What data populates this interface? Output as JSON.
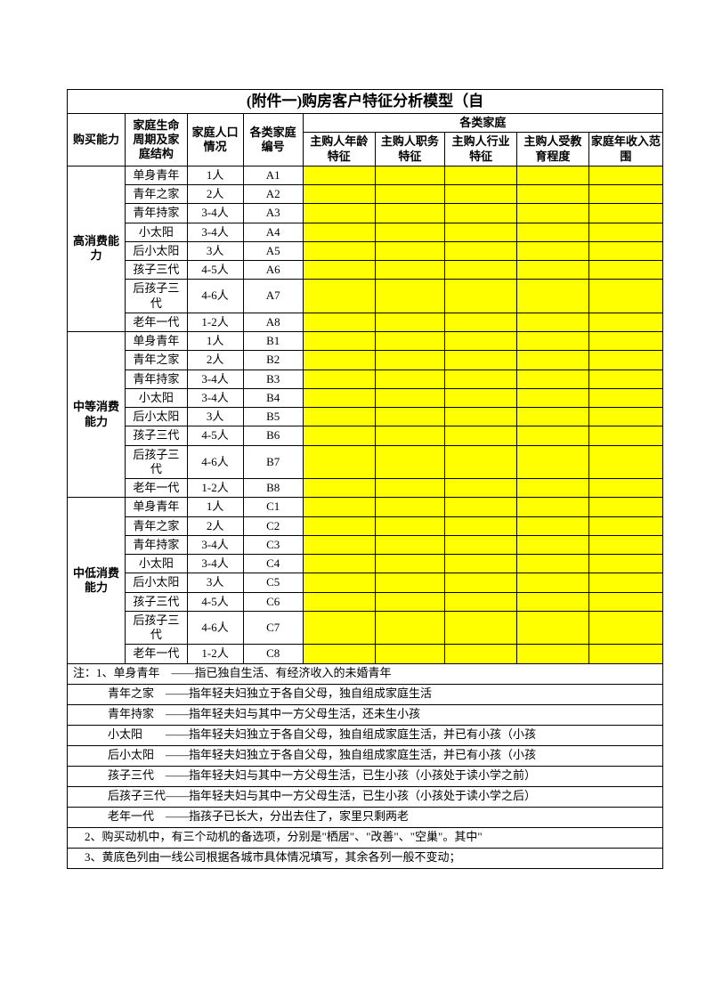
{
  "title": "(附件一)购房客户特征分析模型（自",
  "colors": {
    "highlight": "#ffff00",
    "border": "#000000",
    "bg": "#ffffff"
  },
  "font": {
    "family": "SimSun",
    "size_pt": 10,
    "title_size_pt": 13
  },
  "headers": {
    "col1": "购买能力",
    "col2": "家庭生命周期及家庭结构",
    "col3": "家庭人口情况",
    "col4": "各类家庭编号",
    "merged_top": "各类家庭",
    "c5": "主购人年龄特征",
    "c6": "主购人职务特征",
    "c7": "主购人行业特征",
    "c8": "主购人受教育程度",
    "c9": "家庭年收入范围"
  },
  "groups": [
    {
      "name": "高消费能力",
      "code_prefix": "A",
      "rows": [
        {
          "stage": "单身青年",
          "pop": "1人",
          "code": "A1"
        },
        {
          "stage": "青年之家",
          "pop": "2人",
          "code": "A2"
        },
        {
          "stage": "青年持家",
          "pop": "3-4人",
          "code": "A3"
        },
        {
          "stage": "小太阳",
          "pop": "3-4人",
          "code": "A4"
        },
        {
          "stage": "后小太阳",
          "pop": "3人",
          "code": "A5"
        },
        {
          "stage": "孩子三代",
          "pop": "4-5人",
          "code": "A6"
        },
        {
          "stage": "后孩子三代",
          "pop": "4-6人",
          "code": "A7"
        },
        {
          "stage": "老年一代",
          "pop": "1-2人",
          "code": "A8"
        }
      ]
    },
    {
      "name": "中等消费能力",
      "code_prefix": "B",
      "rows": [
        {
          "stage": "单身青年",
          "pop": "1人",
          "code": "B1"
        },
        {
          "stage": "青年之家",
          "pop": "2人",
          "code": "B2"
        },
        {
          "stage": "青年持家",
          "pop": "3-4人",
          "code": "B3"
        },
        {
          "stage": "小太阳",
          "pop": "3-4人",
          "code": "B4"
        },
        {
          "stage": "后小太阳",
          "pop": "3人",
          "code": "B5"
        },
        {
          "stage": "孩子三代",
          "pop": "4-5人",
          "code": "B6"
        },
        {
          "stage": "后孩子三代",
          "pop": "4-6人",
          "code": "B7"
        },
        {
          "stage": "老年一代",
          "pop": "1-2人",
          "code": "B8"
        }
      ]
    },
    {
      "name": "中低消费能力",
      "code_prefix": "C",
      "rows": [
        {
          "stage": "单身青年",
          "pop": "1人",
          "code": "C1"
        },
        {
          "stage": "青年之家",
          "pop": "2人",
          "code": "C2"
        },
        {
          "stage": "青年持家",
          "pop": "3-4人",
          "code": "C3"
        },
        {
          "stage": "小太阳",
          "pop": "3-4人",
          "code": "C4"
        },
        {
          "stage": "后小太阳",
          "pop": "3人",
          "code": "C5"
        },
        {
          "stage": "孩子三代",
          "pop": "4-5人",
          "code": "C6"
        },
        {
          "stage": "后孩子三代",
          "pop": "4-6人",
          "code": "C7"
        },
        {
          "stage": "老年一代",
          "pop": "1-2人",
          "code": "C8"
        }
      ]
    }
  ],
  "notes": [
    "注：1、单身青年　——指已独自生活、有经济收入的未婚青年",
    "　　　青年之家　——指年轻夫妇独立于各自父母，独自组成家庭生活",
    "　　　青年持家　——指年轻夫妇与其中一方父母生活，还未生小孩",
    "　　　小太阳　　——指年轻夫妇独立于各自父母，独自组成家庭生活，并已有小孩（小孩",
    "　　　后小太阳　——指年轻夫妇独立于各自父母，独自组成家庭生活，并已有小孩（小孩",
    "　　　孩子三代　——指年轻夫妇与其中一方父母生活，已生小孩（小孩处于读小学之前）",
    "　　　后孩子三代——指年轻夫妇与其中一方父母生活，已生小孩（小孩处于读小学之后）",
    "　　　老年一代　——指孩子已长大，分出去住了，家里只剩两老",
    "　2、购买动机中，有三个动机的备选项，分别是\"栖居\"、\"改善\"、\"空巢\"。其中\"",
    "　3、黄底色列由一线公司根据各城市具体情况填写，其余各列一般不变动；"
  ]
}
